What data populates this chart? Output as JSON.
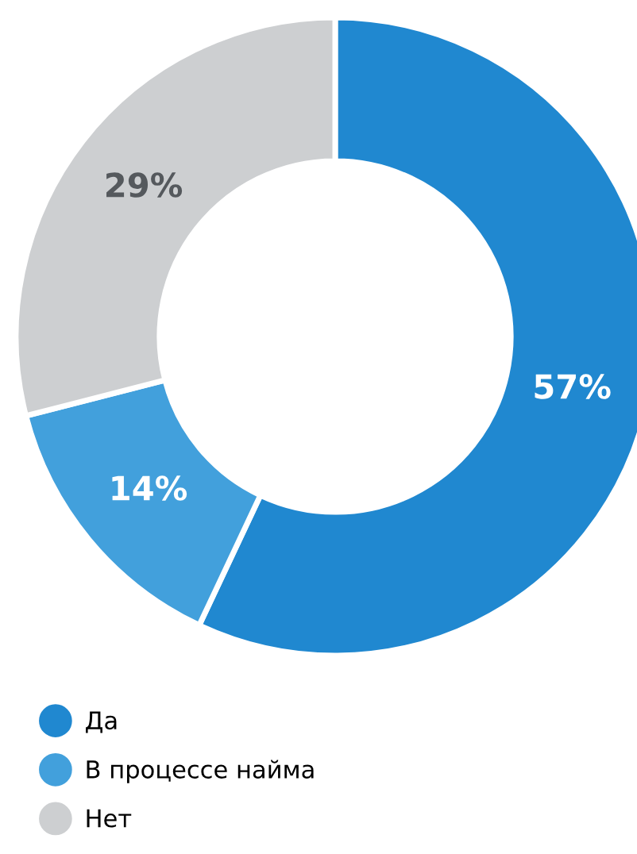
{
  "chart_data": {
    "type": "donut",
    "categories": [
      "Да",
      "В процессе найма",
      "Нет"
    ],
    "values": [
      57,
      14,
      29
    ],
    "colors": [
      "#2088d0",
      "#42a0dc",
      "#cdcfd1"
    ],
    "value_labels": [
      "57%",
      "14%",
      "29%"
    ],
    "legend": "bottom left"
  }
}
